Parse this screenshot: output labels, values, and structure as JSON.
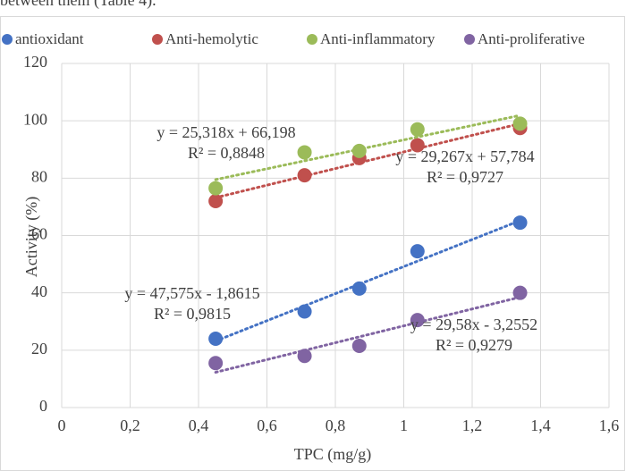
{
  "caption": "between them (Table 4).",
  "chart_data": {
    "type": "scatter",
    "x_label": "TPC (mg/g)",
    "y_label": "Activity (%)",
    "xlim": [
      0,
      1.6
    ],
    "ylim": [
      0,
      120
    ],
    "xticks": [
      0,
      {
        "value": 0.2,
        "label": "0,2"
      },
      {
        "value": 0.4,
        "label": "0,4"
      },
      {
        "value": 0.6,
        "label": "0,6"
      },
      {
        "value": 0.8,
        "label": "0,8"
      },
      1,
      {
        "value": 1.2,
        "label": "1,2"
      },
      {
        "value": 1.4,
        "label": "1,4"
      },
      {
        "value": 1.6,
        "label": "1,6"
      }
    ],
    "yticks": [
      0,
      20,
      40,
      60,
      80,
      100,
      120
    ],
    "grid": true,
    "legend": "top",
    "x": [
      0.45,
      0.71,
      0.87,
      1.04,
      1.34
    ],
    "series": [
      {
        "name": "antioxidant",
        "color": "#4472c4",
        "values": [
          24,
          33.5,
          41.5,
          54.5,
          64.5
        ],
        "trendline": {
          "x": [
            0.45,
            1.34
          ],
          "y": [
            23.2,
            65.2
          ],
          "equation": "y = 47,575x - 1,8615",
          "r2": "R² = 0,9815"
        }
      },
      {
        "name": "Anti-hemolytic",
        "color": "#c0504d",
        "values": [
          72,
          81,
          87,
          91.5,
          97.5
        ],
        "trendline": {
          "x": [
            0.45,
            1.34
          ],
          "y": [
            73.2,
            99
          ],
          "equation": "y = 29,267x + 57,784",
          "r2": "R² = 0,9727"
        }
      },
      {
        "name": "Anti-inflammatory",
        "color": "#9bbb59",
        "values": [
          76.5,
          89,
          89.5,
          97,
          99
        ],
        "trendline": {
          "x": [
            0.45,
            1.34
          ],
          "y": [
            79.5,
            101.9
          ],
          "equation": "y = 25,318x + 66,198",
          "r2": "R² = 0,8848"
        }
      },
      {
        "name": "Anti-proliferative",
        "color": "#8064a2",
        "values": [
          15.5,
          18,
          21.5,
          30.5,
          40
        ],
        "trendline": {
          "x": [
            0.45,
            1.34
          ],
          "y": [
            12.3,
            38.5
          ],
          "equation": "y = 29,58x - 3,2552",
          "r2": "R² = 0,9279"
        }
      }
    ]
  }
}
